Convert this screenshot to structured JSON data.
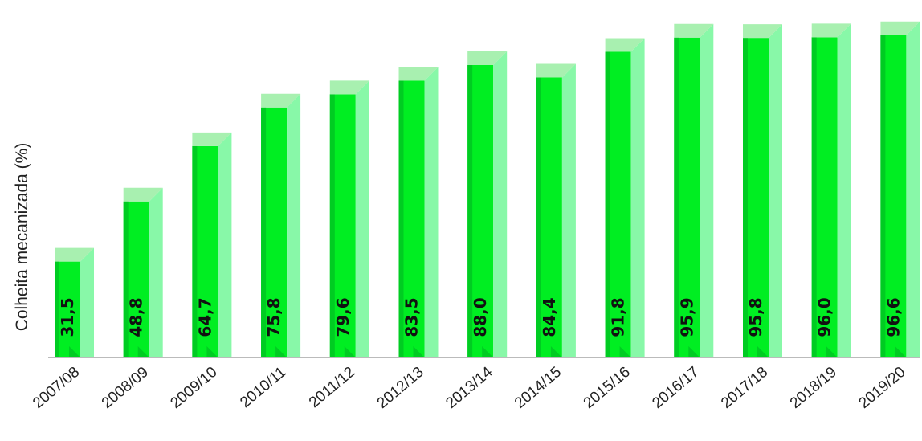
{
  "chart_data": {
    "type": "bar",
    "title": "",
    "xlabel": "",
    "ylabel": "Colheita mecanizada (%)",
    "categories": [
      "2007/08",
      "2008/09",
      "2009/10",
      "2010/11",
      "2011/12",
      "2012/13",
      "2013/14",
      "2014/15",
      "2015/16",
      "2016/17",
      "2017/18",
      "2018/19",
      "2019/20"
    ],
    "values": [
      31.5,
      48.8,
      64.7,
      75.8,
      79.6,
      83.5,
      88.0,
      84.4,
      91.8,
      95.9,
      95.8,
      96.0,
      96.6
    ],
    "data_labels": [
      "31,5",
      "48,8",
      "64,7",
      "75,8",
      "79,6",
      "83,5",
      "88,0",
      "84,4",
      "91,8",
      "95,9",
      "95,8",
      "96,0",
      "96,6"
    ],
    "ylim": [
      0,
      100
    ],
    "grid": false,
    "legend": "none",
    "colors": {
      "front": "#00ee22",
      "front_dark": "#00cc22",
      "side": "#88f8a8",
      "top": "#a8f0b0",
      "axis": "#bbbbbb"
    }
  }
}
